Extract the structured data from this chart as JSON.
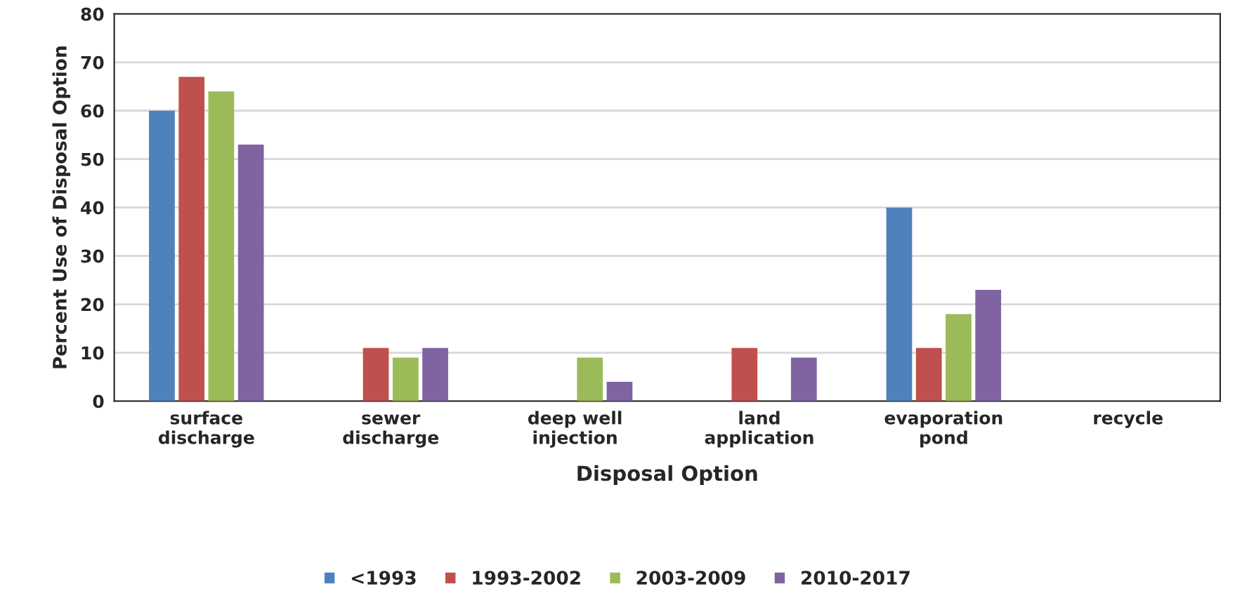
{
  "chart_data": {
    "type": "bar",
    "categories": [
      "surface\ndischarge",
      "sewer\ndischarge",
      "deep well\ninjection",
      "land\napplication",
      "evaporation\npond",
      "recycle"
    ],
    "series": [
      {
        "name": "<1993",
        "color": "#4f81bd",
        "values": [
          60,
          0,
          0,
          0,
          40,
          0
        ]
      },
      {
        "name": "1993-2002",
        "color": "#c0504d",
        "values": [
          67,
          11,
          0,
          11,
          11,
          0
        ]
      },
      {
        "name": "2003-2009",
        "color": "#9bbb59",
        "values": [
          64,
          9,
          9,
          0,
          18,
          0
        ]
      },
      {
        "name": "2010-2017",
        "color": "#8064a2",
        "values": [
          53,
          11,
          4,
          9,
          23,
          0
        ]
      }
    ],
    "xlabel": "Disposal Option",
    "ylabel": "Percent Use of Disposal Option",
    "ylim": [
      0,
      80
    ],
    "yticks": [
      0,
      10,
      20,
      30,
      40,
      50,
      60,
      70,
      80
    ],
    "grid": "y",
    "legend": "bottom"
  }
}
